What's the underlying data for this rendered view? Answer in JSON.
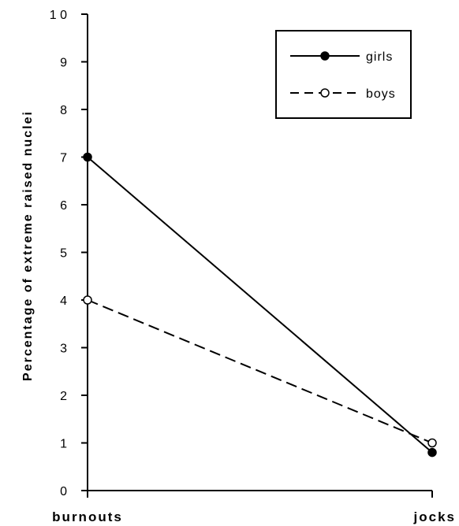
{
  "chart_data": {
    "type": "line",
    "categories": [
      "burnouts",
      "jocks"
    ],
    "series": [
      {
        "name": "girls",
        "values": [
          7.0,
          0.8
        ],
        "style": "solid",
        "marker": "filled-circle",
        "color": "#000000"
      },
      {
        "name": "boys",
        "values": [
          4.0,
          1.0
        ],
        "style": "dashed",
        "marker": "open-circle",
        "color": "#000000"
      }
    ],
    "ylabel": "Percentage of extreme raised nuclei",
    "xlabel": "",
    "ylim": [
      0,
      10
    ],
    "yticks": [
      "0",
      "1",
      "2",
      "3",
      "4",
      "5",
      "6",
      "7",
      "8",
      "9",
      "1 0"
    ],
    "grid": false,
    "legend_position": "top-right"
  }
}
